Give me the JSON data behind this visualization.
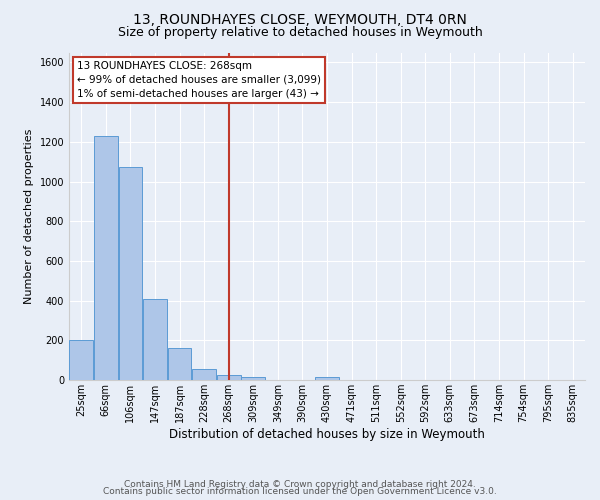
{
  "title": "13, ROUNDHAYES CLOSE, WEYMOUTH, DT4 0RN",
  "subtitle": "Size of property relative to detached houses in Weymouth",
  "xlabel": "Distribution of detached houses by size in Weymouth",
  "ylabel": "Number of detached properties",
  "bar_labels": [
    "25sqm",
    "66sqm",
    "106sqm",
    "147sqm",
    "187sqm",
    "228sqm",
    "268sqm",
    "309sqm",
    "349sqm",
    "390sqm",
    "430sqm",
    "471sqm",
    "511sqm",
    "552sqm",
    "592sqm",
    "633sqm",
    "673sqm",
    "714sqm",
    "754sqm",
    "795sqm",
    "835sqm"
  ],
  "bar_values": [
    200,
    1230,
    1075,
    410,
    160,
    55,
    25,
    15,
    0,
    0,
    15,
    0,
    0,
    0,
    0,
    0,
    0,
    0,
    0,
    0,
    0
  ],
  "bar_color": "#aec6e8",
  "bar_edge_color": "#5b9bd5",
  "vline_label_index": 6,
  "vline_color": "#c0392b",
  "annotation_text": "13 ROUNDHAYES CLOSE: 268sqm\n← 99% of detached houses are smaller (3,099)\n1% of semi-detached houses are larger (43) →",
  "annotation_box_color": "white",
  "annotation_box_edge_color": "#c0392b",
  "ylim": [
    0,
    1650
  ],
  "yticks": [
    0,
    200,
    400,
    600,
    800,
    1000,
    1200,
    1400,
    1600
  ],
  "background_color": "#e8eef7",
  "grid_color": "white",
  "footer_line1": "Contains HM Land Registry data © Crown copyright and database right 2024.",
  "footer_line2": "Contains public sector information licensed under the Open Government Licence v3.0.",
  "title_fontsize": 10,
  "subtitle_fontsize": 9,
  "xlabel_fontsize": 8.5,
  "ylabel_fontsize": 8,
  "tick_fontsize": 7,
  "footer_fontsize": 6.5,
  "annotation_fontsize": 7.5
}
